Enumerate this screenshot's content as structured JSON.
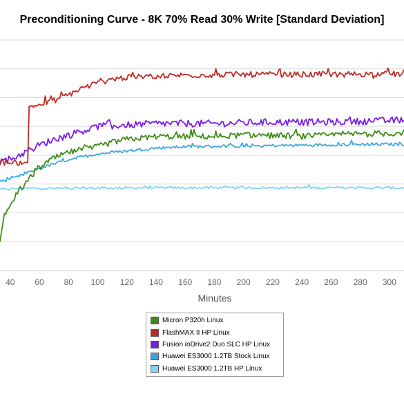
{
  "chart_data": {
    "type": "line",
    "title": "Preconditioning Curve - 8K 70% Read 30% Write [Standard Deviation]",
    "xlabel": "Minutes",
    "ylabel": "",
    "xlim": [
      33,
      310
    ],
    "ylim": [
      0,
      8
    ],
    "x_ticks": [
      40,
      60,
      80,
      100,
      120,
      140,
      160,
      180,
      200,
      220,
      240,
      260,
      280,
      300
    ],
    "x_tick_labels": [
      "40",
      "60",
      "80",
      "100",
      "120",
      "140",
      "160",
      "180",
      "200",
      "220",
      "240",
      "260",
      "280",
      "300"
    ],
    "y_gridlines": [
      1,
      2,
      3,
      4,
      5,
      6,
      7,
      8
    ],
    "grid": "horizontal",
    "legend_position": "bottom-center",
    "series": [
      {
        "name": "Micron P320h Linux",
        "color": "#3c8c14",
        "points": [
          [
            33,
            0.9
          ],
          [
            36,
            2.0
          ],
          [
            40,
            2.2
          ],
          [
            45,
            2.7
          ],
          [
            50,
            3.0
          ],
          [
            55,
            3.3
          ],
          [
            60,
            3.55
          ],
          [
            65,
            3.75
          ],
          [
            70,
            3.9
          ],
          [
            75,
            4.0
          ],
          [
            80,
            4.1
          ],
          [
            90,
            4.2
          ],
          [
            100,
            4.3
          ],
          [
            110,
            4.45
          ],
          [
            120,
            4.55
          ],
          [
            130,
            4.6
          ],
          [
            140,
            4.65
          ],
          [
            160,
            4.65
          ],
          [
            180,
            4.65
          ],
          [
            200,
            4.7
          ],
          [
            220,
            4.7
          ],
          [
            240,
            4.65
          ],
          [
            260,
            4.7
          ],
          [
            280,
            4.75
          ],
          [
            300,
            4.75
          ],
          [
            310,
            4.8
          ]
        ],
        "noise": 0.1
      },
      {
        "name": "FlashMAX II HP Linux",
        "color": "#bf2a24",
        "points": [
          [
            33,
            3.75
          ],
          [
            50,
            3.75
          ],
          [
            52,
            3.75
          ],
          [
            53,
            5.7
          ],
          [
            60,
            5.75
          ],
          [
            70,
            5.9
          ],
          [
            80,
            6.1
          ],
          [
            90,
            6.35
          ],
          [
            100,
            6.5
          ],
          [
            110,
            6.65
          ],
          [
            120,
            6.7
          ],
          [
            140,
            6.75
          ],
          [
            160,
            6.78
          ],
          [
            200,
            6.8
          ],
          [
            240,
            6.8
          ],
          [
            280,
            6.82
          ],
          [
            310,
            6.82
          ]
        ],
        "noise": 0.1
      },
      {
        "name": "Fusion ioDrive2 Duo SLC HP Linux",
        "color": "#7a1be6",
        "points": [
          [
            33,
            3.8
          ],
          [
            40,
            3.85
          ],
          [
            50,
            4.1
          ],
          [
            60,
            4.35
          ],
          [
            70,
            4.55
          ],
          [
            80,
            4.7
          ],
          [
            90,
            4.85
          ],
          [
            100,
            5.0
          ],
          [
            120,
            5.05
          ],
          [
            140,
            5.1
          ],
          [
            180,
            5.1
          ],
          [
            220,
            5.15
          ],
          [
            260,
            5.15
          ],
          [
            300,
            5.2
          ],
          [
            310,
            5.25
          ]
        ],
        "noise": 0.12
      },
      {
        "name": "Huawei ES3000 1.2TB Stock Linux",
        "color": "#3aa8e0",
        "points": [
          [
            33,
            3.1
          ],
          [
            40,
            3.15
          ],
          [
            50,
            3.35
          ],
          [
            60,
            3.55
          ],
          [
            70,
            3.7
          ],
          [
            80,
            3.85
          ],
          [
            90,
            3.95
          ],
          [
            100,
            4.05
          ],
          [
            120,
            4.15
          ],
          [
            140,
            4.25
          ],
          [
            160,
            4.3
          ],
          [
            200,
            4.32
          ],
          [
            240,
            4.35
          ],
          [
            280,
            4.38
          ],
          [
            310,
            4.38
          ]
        ],
        "noise": 0.05
      },
      {
        "name": "Huawei ES3000 1.2TB HP Linux",
        "color": "#82d4f2",
        "points": [
          [
            33,
            2.8
          ],
          [
            45,
            2.85
          ],
          [
            60,
            2.85
          ],
          [
            100,
            2.86
          ],
          [
            140,
            2.87
          ],
          [
            200,
            2.87
          ],
          [
            260,
            2.87
          ],
          [
            310,
            2.87
          ]
        ],
        "noise": 0.04
      }
    ]
  }
}
